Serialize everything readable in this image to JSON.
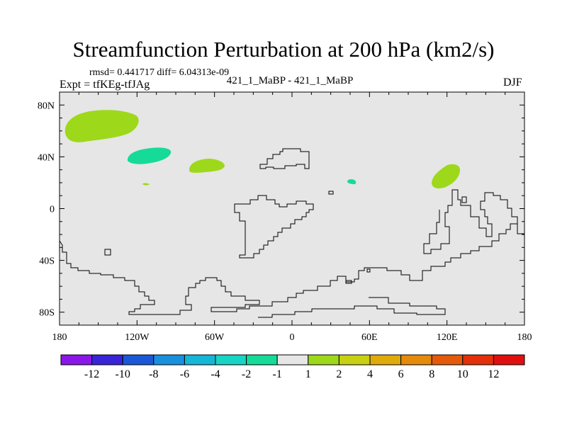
{
  "figure": {
    "title": "Streamfunction Perturbation at 200 hPa (km2/s)",
    "stats": "rmsd= 0.441717 diff= 6.04313e-09",
    "experiment": "Expt = tfKEg-tfJAg",
    "comparison": "421_1_MaBP - 421_1_MaBP",
    "season": "DJF"
  },
  "chart_data": {
    "type": "heatmap",
    "title": "Streamfunction Perturbation at 200 hPa (km2/s)",
    "xlabel": "",
    "ylabel": "",
    "xlim": [
      -180,
      180
    ],
    "ylim": [
      -90,
      90
    ],
    "x_ticks": [
      {
        "value": -180,
        "label": "180"
      },
      {
        "value": -120,
        "label": "120W"
      },
      {
        "value": -60,
        "label": "60W"
      },
      {
        "value": 0,
        "label": "0"
      },
      {
        "value": 60,
        "label": "60E"
      },
      {
        "value": 120,
        "label": "120E"
      },
      {
        "value": 180,
        "label": "180"
      }
    ],
    "y_ticks": [
      {
        "value": 80,
        "label": "80N"
      },
      {
        "value": 40,
        "label": "40N"
      },
      {
        "value": 0,
        "label": "0"
      },
      {
        "value": -40,
        "label": "40S"
      },
      {
        "value": -80,
        "label": "80S"
      }
    ],
    "background_color": "#e6e6e6",
    "contour_levels": [
      -12,
      -10,
      -8,
      -6,
      -4,
      -2,
      -1,
      1,
      2,
      4,
      6,
      8,
      10,
      12
    ],
    "colorbar_labels": [
      "-12",
      "-10",
      "-8",
      "-6",
      "-4",
      "-2",
      "-1",
      "1",
      "2",
      "4",
      "6",
      "8",
      "10",
      "12"
    ],
    "colorbar_colors": [
      "#8a16e8",
      "#3a24d8",
      "#1b58d8",
      "#1890dd",
      "#15b6d6",
      "#18d4c4",
      "#16da98",
      "#e6e6e6",
      "#9ed81a",
      "#c8d014",
      "#e0aa0a",
      "#e58a0a",
      "#e45a0a",
      "#e3300a",
      "#e01010"
    ],
    "features": [
      {
        "name": "pos-anomaly-1",
        "lon": -155,
        "lat": 65,
        "value_range": [
          1,
          2
        ],
        "color": "#9ed81a"
      },
      {
        "name": "neg-anomaly-1",
        "lon": -108,
        "lat": 37,
        "value_range": [
          -2,
          -1
        ],
        "color": "#16da98"
      },
      {
        "name": "pos-anomaly-2",
        "lon": -62,
        "lat": 31,
        "value_range": [
          1,
          2
        ],
        "color": "#9ed81a"
      },
      {
        "name": "neg-anomaly-2",
        "lon": 47,
        "lat": 20,
        "value_range": [
          -2,
          -1
        ],
        "color": "#16da98"
      },
      {
        "name": "pos-anomaly-3",
        "lon": 113,
        "lat": 25,
        "value_range": [
          1,
          2
        ],
        "color": "#9ed81a"
      },
      {
        "name": "pos-anomaly-4",
        "lon": -115,
        "lat": 18,
        "value_range": [
          1,
          2
        ],
        "color": "#9ed81a"
      }
    ],
    "grid": false
  }
}
